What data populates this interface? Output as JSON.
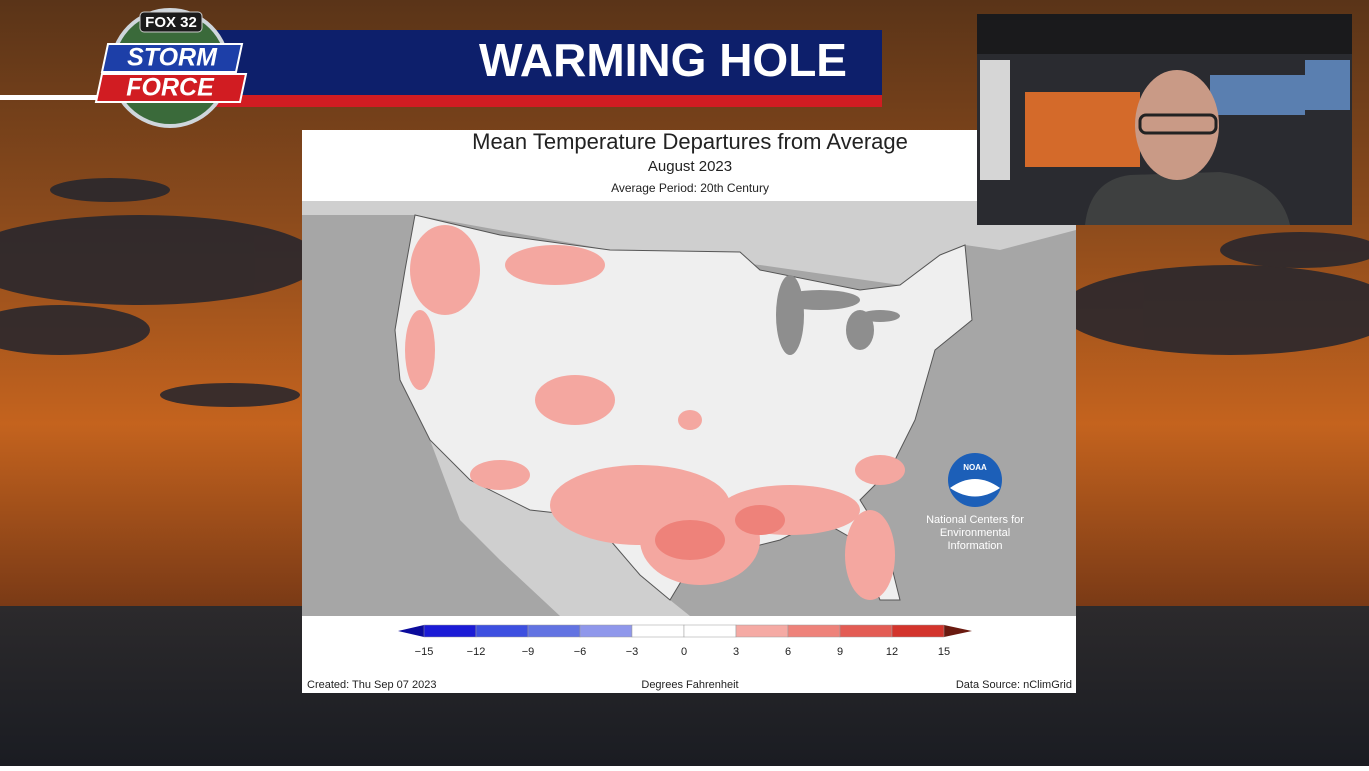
{
  "logo": {
    "station": "FOX 32",
    "line1": "STORM",
    "line2": "FORCE"
  },
  "banner": {
    "title": "WARMING HOLE"
  },
  "map": {
    "title": "Mean Temperature Departures from Average",
    "subtitle": "August 2023",
    "period": "Average Period: 20th Century",
    "legend": {
      "ticks": [
        "−15",
        "−12",
        "−9",
        "−6",
        "−3",
        "0",
        "3",
        "6",
        "9",
        "12",
        "15"
      ],
      "colors": [
        "#1b1bd6",
        "#3d4fe0",
        "#6273e2",
        "#8f97eb",
        "#ffffff",
        "#ffffff",
        "#f5aaa4",
        "#ee827a",
        "#e35c54",
        "#d3342c"
      ],
      "low_color": "#0b0b9c",
      "high_color": "#6a1a10",
      "unit": "Degrees Fahrenheit"
    },
    "created": "Created: Thu Sep 07 2023",
    "source": "Data Source: nClimGrid",
    "agency": {
      "short": "NOAA",
      "line1": "National Centers for",
      "line2": "Environmental",
      "line3": "Information"
    }
  }
}
